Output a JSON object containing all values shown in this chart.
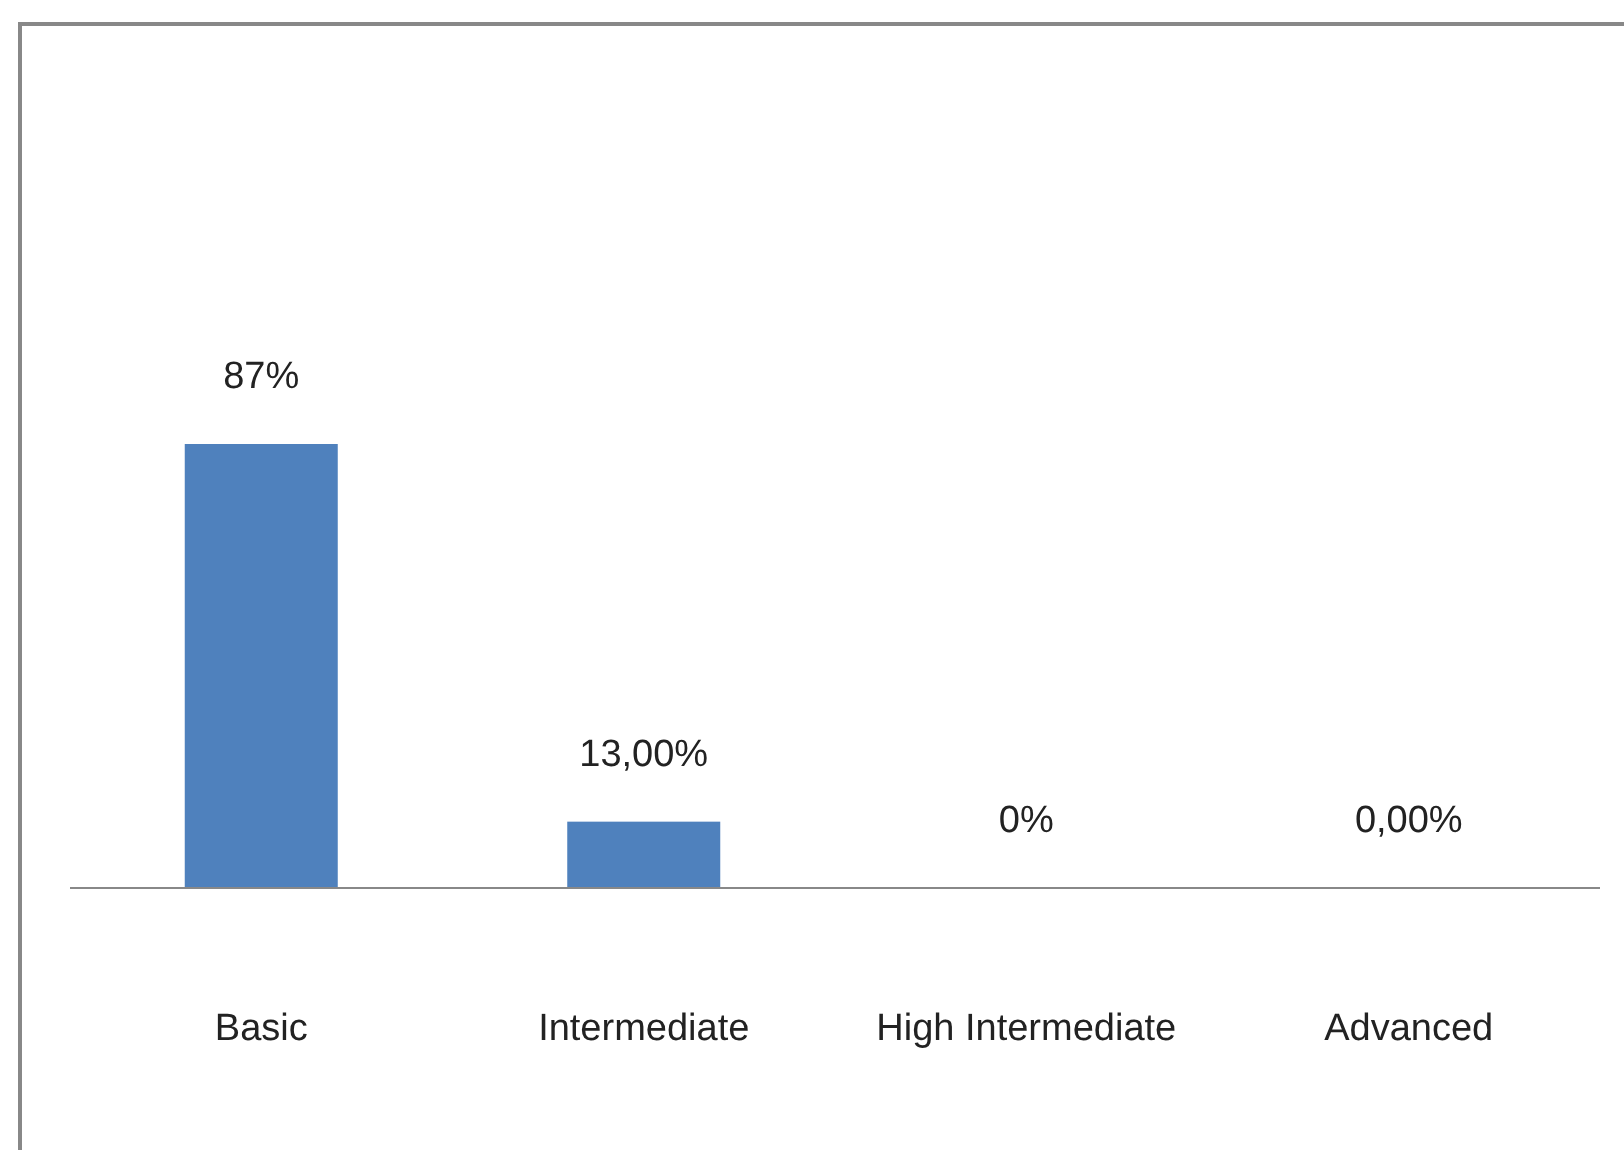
{
  "chart_data": {
    "type": "bar",
    "categories": [
      "Basic",
      "Intermediate",
      "High Intermediate",
      "Advanced"
    ],
    "values": [
      87,
      13,
      0,
      0
    ],
    "value_labels": [
      "87%",
      "13,00%",
      "0%",
      "0,00%"
    ],
    "color": "#4f81bd"
  }
}
